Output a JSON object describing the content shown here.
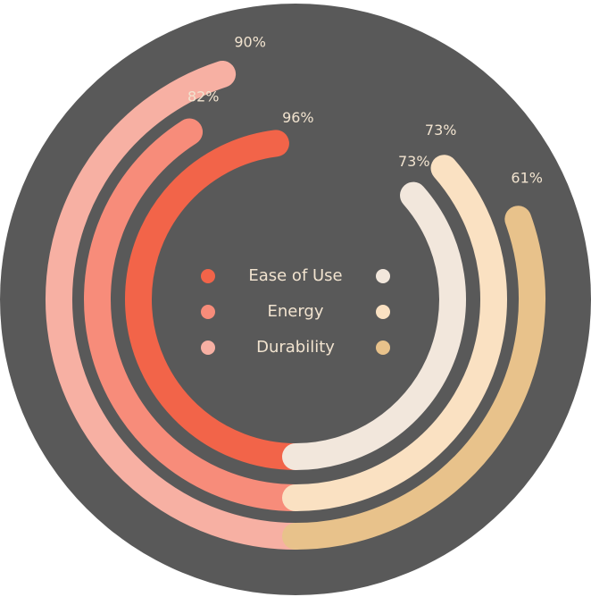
{
  "chart_data": {
    "type": "radial-bar",
    "metrics": [
      "Ease of Use",
      "Energy",
      "Durability"
    ],
    "series": [
      {
        "side": "left",
        "values": [
          96,
          82,
          90
        ],
        "colors": [
          "#f26449",
          "#f78c7a",
          "#f7b0a3"
        ]
      },
      {
        "side": "right",
        "values": [
          73,
          73,
          61
        ],
        "colors": [
          "#f2e7dc",
          "#fae1c2",
          "#e8c28b"
        ]
      }
    ],
    "value_labels": {
      "left": [
        "96%",
        "82%",
        "90%"
      ],
      "right": [
        "73%",
        "73%",
        "61%"
      ]
    },
    "background": "#595959",
    "label_color": "#f1e3cf"
  }
}
